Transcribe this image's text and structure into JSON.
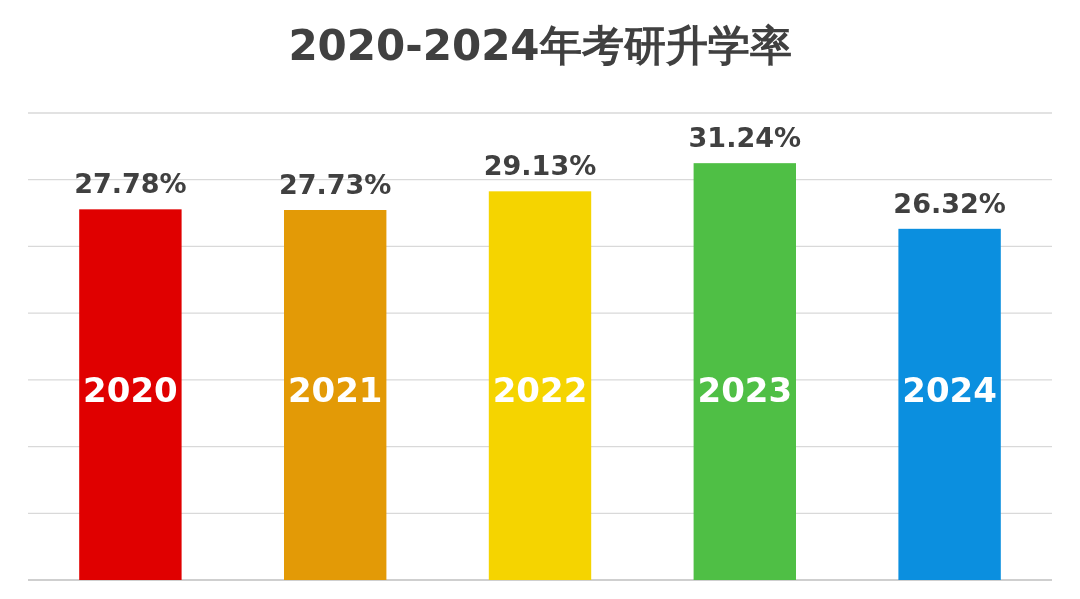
{
  "chart_data": {
    "type": "bar",
    "title": "2020-2024年考研升学率",
    "categories": [
      "2020",
      "2021",
      "2022",
      "2023",
      "2024"
    ],
    "values": [
      27.78,
      27.73,
      29.13,
      31.24,
      26.32
    ],
    "value_labels": [
      "27.78%",
      "27.73%",
      "29.13%",
      "31.24%",
      "26.32%"
    ],
    "colors": [
      "#e00000",
      "#e39a06",
      "#f5d400",
      "#4fbf45",
      "#0b8fdf"
    ],
    "ylim": [
      0,
      35
    ],
    "yticks": [
      {
        "value": 0,
        "label": null
      },
      {
        "value": 5,
        "label": null
      },
      {
        "value": 10,
        "label": null
      },
      {
        "value": 15,
        "label": null
      },
      {
        "value": 20,
        "label": null
      },
      {
        "value": 25,
        "label": null
      },
      {
        "value": 30,
        "label": null
      },
      {
        "value": 35,
        "label": null
      }
    ],
    "grid": "y",
    "tick_labels": "x"
  }
}
